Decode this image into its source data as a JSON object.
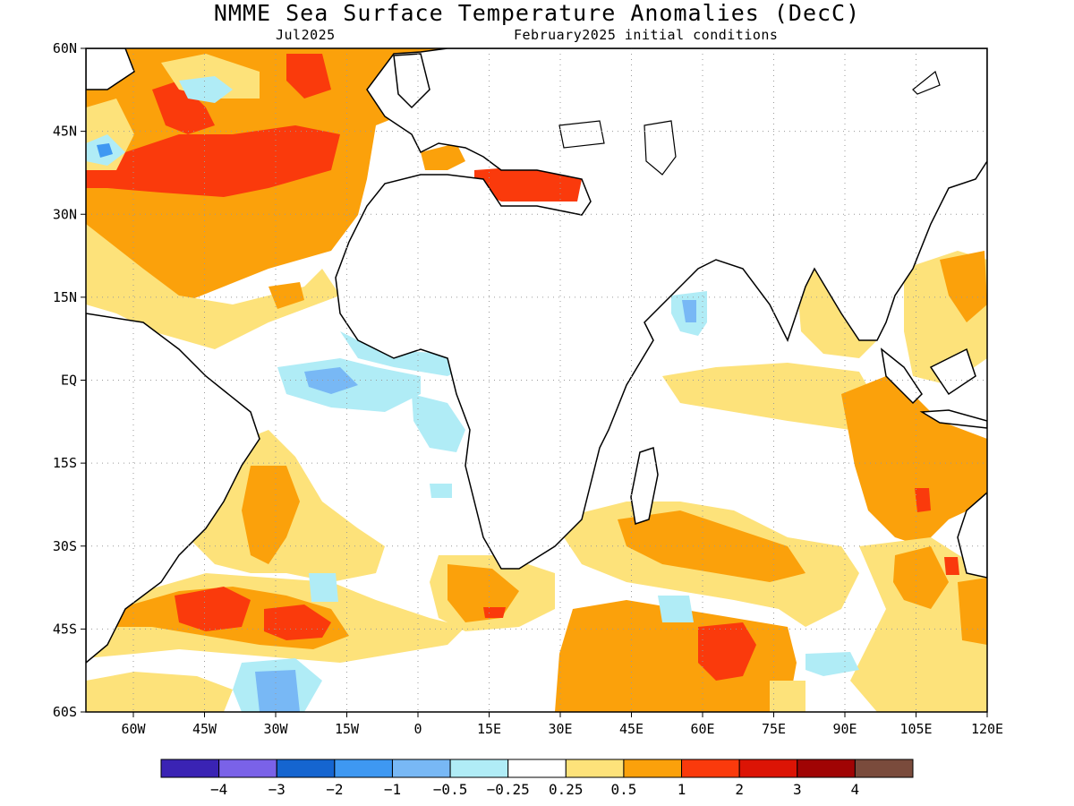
{
  "header": {
    "title": "NMME Sea Surface Temperature Anomalies (DecC)",
    "subtitle_left": "Jul2025",
    "subtitle_right": "February2025 initial conditions"
  },
  "axes": {
    "lat_labels": [
      "60N",
      "45N",
      "30N",
      "15N",
      "EQ",
      "15S",
      "30S",
      "45S",
      "60S"
    ],
    "lon_labels": [
      "60W",
      "45W",
      "30W",
      "15W",
      "0",
      "15E",
      "30E",
      "45E",
      "60E",
      "75E",
      "90E",
      "105E",
      "120E"
    ],
    "lat_values": [
      60,
      45,
      30,
      15,
      0,
      -15,
      -30,
      -45,
      -60
    ],
    "lon_values": [
      -60,
      -45,
      -30,
      -15,
      0,
      15,
      30,
      45,
      60,
      75,
      90,
      105,
      120
    ],
    "lat_range": [
      -60,
      60
    ],
    "lon_range": [
      -70,
      120
    ],
    "grid": "dotted"
  },
  "colorbar": {
    "colors": [
      "#3a23b4",
      "#7a62e8",
      "#1565d0",
      "#3e98f2",
      "#78b8f5",
      "#b0ecf6",
      "#ffffff",
      "#fde27a",
      "#fba10b",
      "#fa3a0c",
      "#dc1405",
      "#a00404",
      "#7a4b3c"
    ],
    "labels": [
      "-4",
      "-3",
      "-2",
      "-1",
      "-0.5",
      "-0.25",
      "0.25",
      "0.5",
      "1",
      "2",
      "3",
      "4"
    ]
  }
}
